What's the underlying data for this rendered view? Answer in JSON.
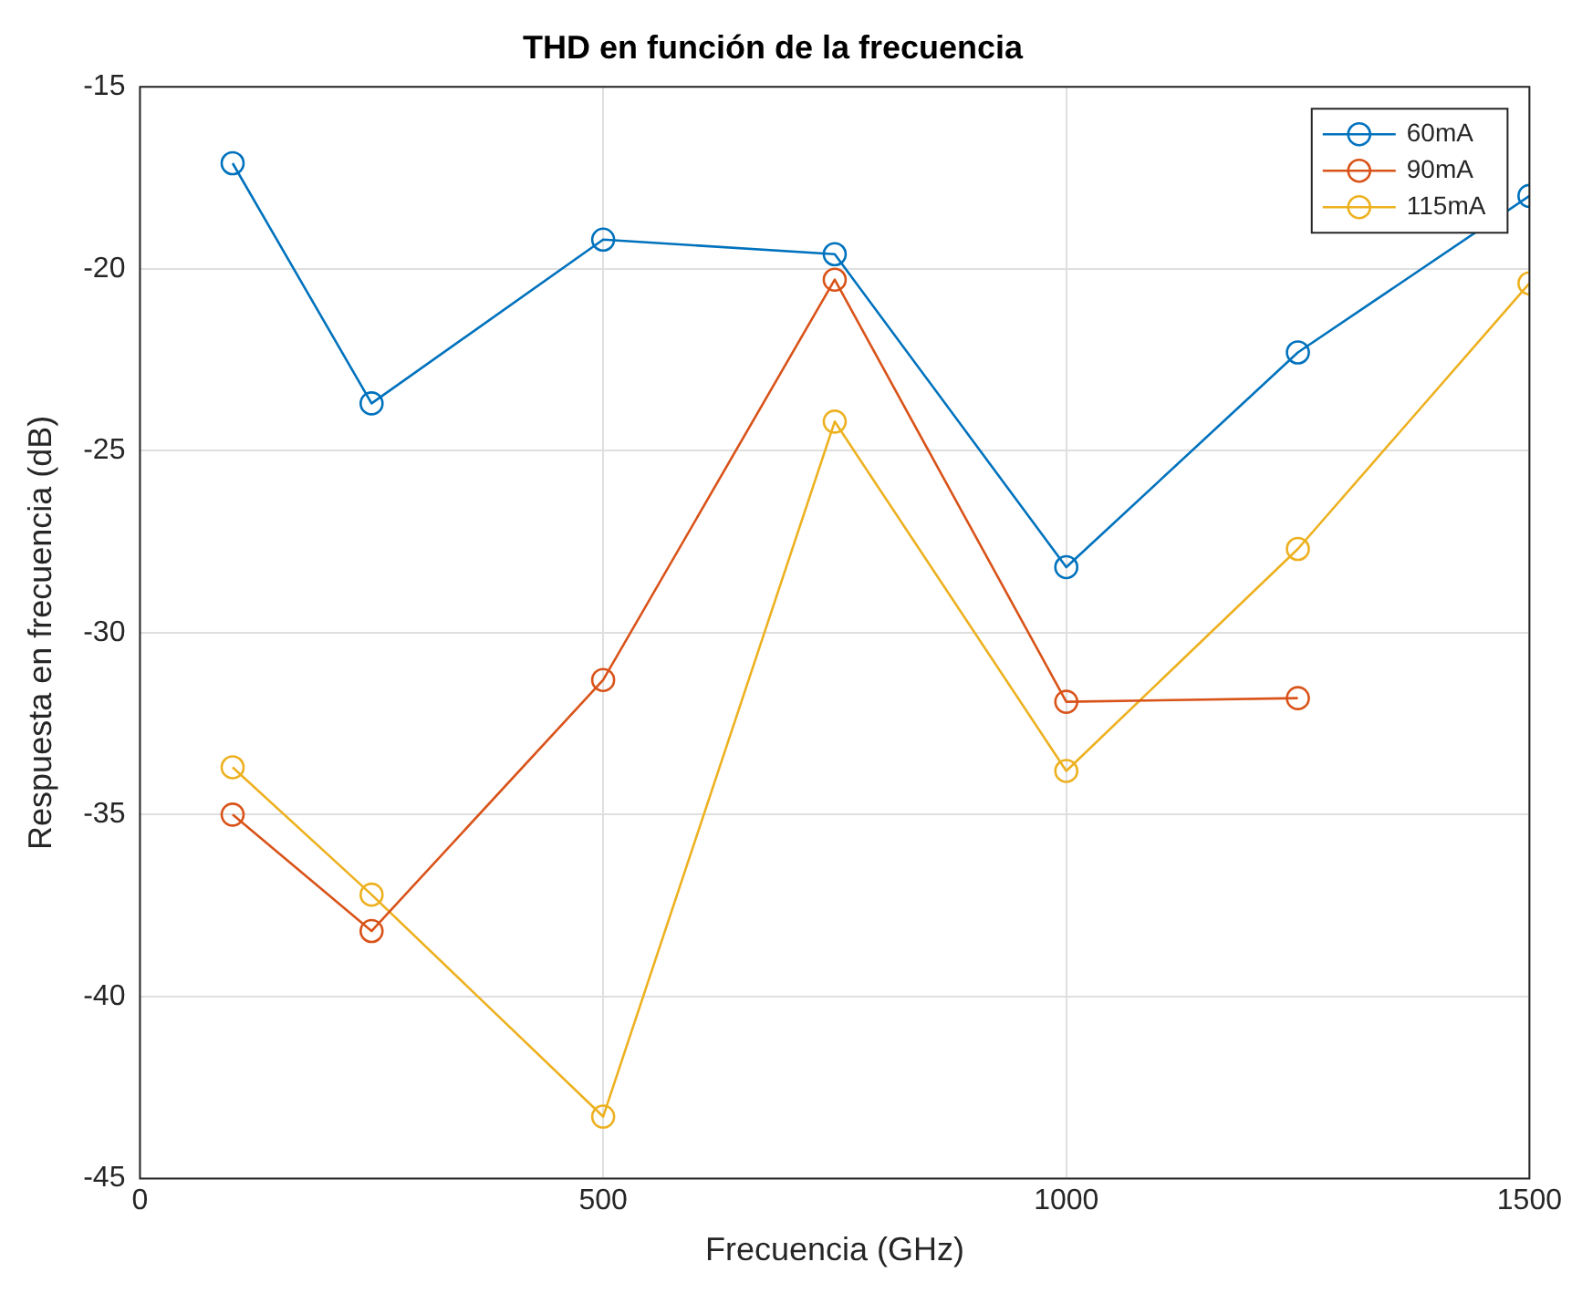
{
  "chart_data": {
    "type": "line",
    "title": "THD en función de la frecuencia",
    "xlabel": "Frecuencia (GHz)",
    "ylabel": "Respuesta en frecuencia (dB)",
    "x": [
      100,
      250,
      500,
      750,
      1000,
      1250,
      1500
    ],
    "series": [
      {
        "name": "60mA",
        "color": "#0072bd",
        "values": [
          -17.1,
          -23.7,
          -19.2,
          -19.6,
          -28.2,
          -22.3,
          -18.0
        ]
      },
      {
        "name": "90mA",
        "color": "#d95319",
        "values": [
          -35.0,
          -38.2,
          -31.3,
          -20.3,
          -31.9,
          -31.8,
          null
        ]
      },
      {
        "name": "115mA",
        "color": "#edb120",
        "values": [
          -33.7,
          -37.2,
          -43.3,
          -24.2,
          -33.8,
          -27.7,
          -20.4
        ]
      }
    ],
    "xlim": [
      0,
      1500
    ],
    "xticks": [
      0,
      500,
      1000,
      1500
    ],
    "ylim": [
      -45,
      -15
    ],
    "yticks": [
      -45,
      -40,
      -35,
      -30,
      -25,
      -20,
      -15
    ],
    "grid": true,
    "legend": "top right",
    "marker": "circle",
    "line_style": "solid"
  }
}
